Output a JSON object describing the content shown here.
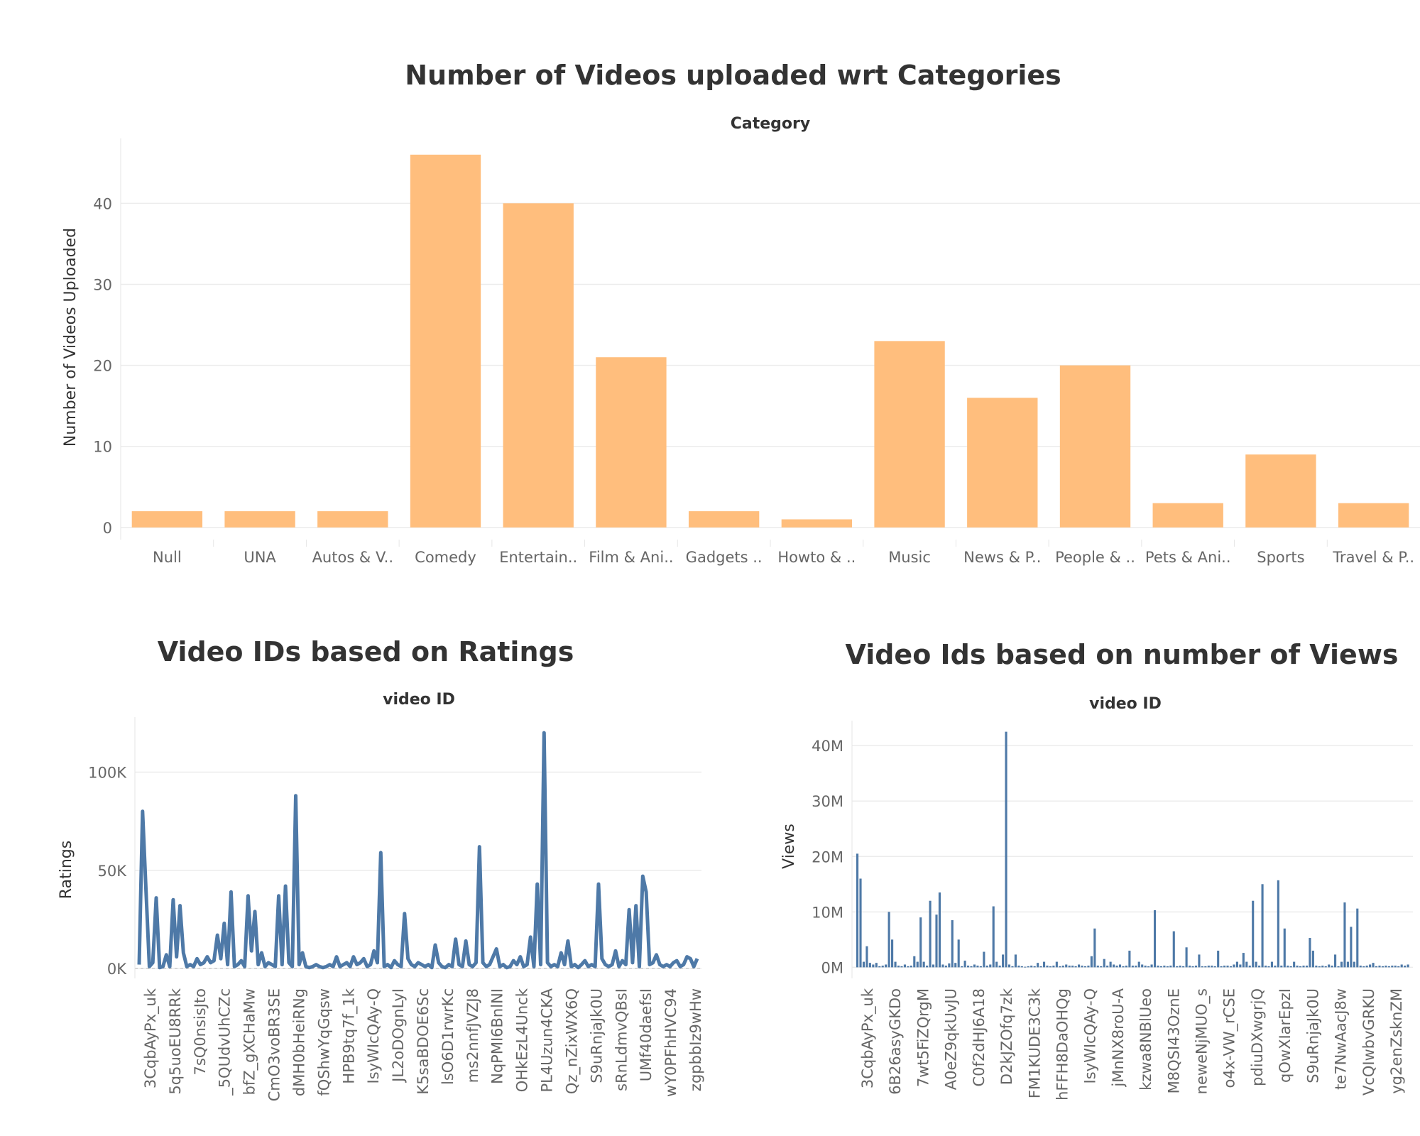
{
  "chart_data": [
    {
      "type": "bar",
      "title": "Number of Videos uploaded wrt Categories",
      "column_header": "Category",
      "ylabel": "Number of Videos Uploaded",
      "ylim": [
        -1.5,
        48
      ],
      "yticks": [
        0,
        10,
        20,
        30,
        40
      ],
      "grid": true,
      "color": "#FFBE7D",
      "categories": [
        "Null",
        "UNA",
        "Autos & V..",
        "Comedy",
        "Entertain..",
        "Film & Ani..",
        "Gadgets ..",
        "Howto & ..",
        "Music",
        "News & P..",
        "People & ..",
        "Pets & Ani..",
        "Sports",
        "Travel & P.."
      ],
      "values": [
        2,
        2,
        2,
        46,
        40,
        21,
        2,
        1,
        23,
        16,
        20,
        3,
        9,
        3
      ]
    },
    {
      "type": "line",
      "title": "Video IDs based on Ratings",
      "column_header": "video ID",
      "ylabel": "Ratings",
      "ylim": [
        -5000,
        128000
      ],
      "yticks": [
        0,
        50000,
        100000
      ],
      "ytick_labels": [
        "0K",
        "50K",
        "100K"
      ],
      "grid": true,
      "color": "#4E79A7",
      "x_tick_labels": [
        "3CqbAyPx_uk",
        "5q5uoEU8RRk",
        "7sQ0nsisJto",
        "_5QUdvUhCZc",
        "bfZ_gXCHaMw",
        "CmO3voBR3SE",
        "dMH0bHeiRNg",
        "fQShwYqGqsw",
        "HPB9tq7f_1k",
        "IsyWIcQAy-Q",
        "JL2oDOgnLyI",
        "K5saBDOE6Sc",
        "lsO6D1rwrKc",
        "ms2nnfJVZJ8",
        "NqPMI6BnlNI",
        "OHkEzL4Unck",
        "PL4Uzun4CKA",
        "Qz_nZixWX6Q",
        "S9uRnjaJk0U",
        "sRnLdmvQBsI",
        "UMf40daefsI",
        "wY0PFhHVC94",
        "zgpbbIz9wHw"
      ],
      "values": [
        2000,
        80000,
        40000,
        1000,
        3000,
        36000,
        500,
        1000,
        7000,
        1000,
        35000,
        6000,
        32000,
        8000,
        1000,
        2000,
        1000,
        5000,
        2000,
        3000,
        6000,
        3000,
        4000,
        17000,
        5000,
        23000,
        2000,
        39000,
        1000,
        2000,
        4000,
        1000,
        37000,
        9000,
        29000,
        2000,
        8000,
        1000,
        3000,
        2000,
        1000,
        37000,
        2000,
        42000,
        3000,
        1000,
        88000,
        2000,
        8000,
        1000,
        500,
        1000,
        2000,
        1000,
        500,
        1000,
        2000,
        1000,
        6000,
        1000,
        2000,
        3000,
        1000,
        6000,
        2000,
        3000,
        5000,
        1000,
        2000,
        9000,
        3000,
        59000,
        1000,
        2000,
        500,
        4000,
        2000,
        1000,
        28000,
        5000,
        2000,
        1000,
        3000,
        2000,
        1000,
        2000,
        500,
        12000,
        3000,
        1000,
        500,
        2000,
        1000,
        15000,
        2000,
        1000,
        14000,
        2000,
        1000,
        3000,
        62000,
        3000,
        1000,
        2000,
        6000,
        10000,
        1000,
        2000,
        500,
        1000,
        4000,
        2000,
        6000,
        1000,
        2000,
        16000,
        1000,
        43000,
        2000,
        120000,
        3000,
        1000,
        2000,
        1000,
        8000,
        2000,
        14000,
        1000,
        2000,
        500,
        2000,
        4000,
        1000,
        2000,
        1000,
        43000,
        5000,
        2000,
        1000,
        2000,
        9000,
        1000,
        4000,
        2000,
        30000,
        3000,
        32000,
        1000,
        47000,
        39000,
        2000,
        3000,
        7000,
        2000,
        1000,
        2000,
        1000,
        3000,
        4000,
        1000,
        2000,
        6000,
        5000,
        1000,
        5000
      ]
    },
    {
      "type": "bar",
      "title": "Video Ids based on number of Views",
      "column_header": "video ID",
      "ylabel": "Views",
      "ylim": [
        -2000000,
        44500000
      ],
      "yticks": [
        0,
        10000000,
        20000000,
        30000000,
        40000000
      ],
      "ytick_labels": [
        "0M",
        "10M",
        "20M",
        "30M",
        "40M"
      ],
      "grid": true,
      "color": "#4E79A7",
      "x_tick_labels": [
        "3CqbAyPx_uk",
        "6B26asyGKDo",
        "7wt5FiZQrgM",
        "A0eZ9qkUvJU",
        "C0f2dHJ6A18",
        "D2kJZOfq7zk",
        "FM1KUDE3C3k",
        "hFFH8DaOHQg",
        "IsyWIcQAy-Q",
        "jMnNX8roU-A",
        "kzwa8NBlUeo",
        "M8QSI43OznE",
        "neweNjMUO_s",
        "o4x-VW_rCSE",
        "pdiuDXwgrjQ",
        "qOwXIarEpzI",
        "S9uRnjaJk0U",
        "te7NwAacJ8w",
        "VcQIwbvGRKU",
        "yg2enZsknZM"
      ],
      "values": [
        20500000,
        16000000,
        1000000,
        3800000,
        800000,
        500000,
        800000,
        200000,
        300000,
        500000,
        10000000,
        5000000,
        1000000,
        300000,
        200000,
        500000,
        200000,
        300000,
        2000000,
        1000000,
        9000000,
        1000000,
        300000,
        12000000,
        500000,
        9500000,
        13500000,
        500000,
        300000,
        700000,
        8500000,
        800000,
        5000000,
        200000,
        1200000,
        300000,
        200000,
        500000,
        300000,
        200000,
        2800000,
        300000,
        500000,
        11000000,
        1000000,
        300000,
        2300000,
        42500000,
        500000,
        200000,
        2300000,
        300000,
        200000,
        100000,
        200000,
        300000,
        200000,
        800000,
        200000,
        1000000,
        300000,
        200000,
        300000,
        1000000,
        200000,
        300000,
        500000,
        300000,
        300000,
        200000,
        500000,
        300000,
        200000,
        300000,
        2000000,
        7000000,
        300000,
        200000,
        1500000,
        300000,
        1000000,
        500000,
        300000,
        500000,
        200000,
        300000,
        3000000,
        300000,
        300000,
        1000000,
        500000,
        300000,
        200000,
        500000,
        10300000,
        300000,
        200000,
        300000,
        200000,
        300000,
        6500000,
        200000,
        300000,
        200000,
        3600000,
        300000,
        200000,
        300000,
        2300000,
        200000,
        200000,
        300000,
        300000,
        200000,
        3000000,
        200000,
        300000,
        300000,
        200000,
        500000,
        1000000,
        500000,
        2600000,
        1000000,
        300000,
        12000000,
        1000000,
        300000,
        15000000,
        300000,
        200000,
        1000000,
        300000,
        15700000,
        300000,
        7000000,
        300000,
        200000,
        1000000,
        300000,
        200000,
        300000,
        300000,
        5300000,
        3000000,
        300000,
        200000,
        300000,
        200000,
        500000,
        300000,
        2300000,
        200000,
        1000000,
        11700000,
        1000000,
        7300000,
        1000000,
        10600000,
        300000,
        200000,
        300000,
        500000,
        800000,
        200000,
        300000,
        200000,
        300000,
        200000,
        300000,
        300000,
        200000,
        500000,
        300000,
        500000
      ]
    }
  ]
}
